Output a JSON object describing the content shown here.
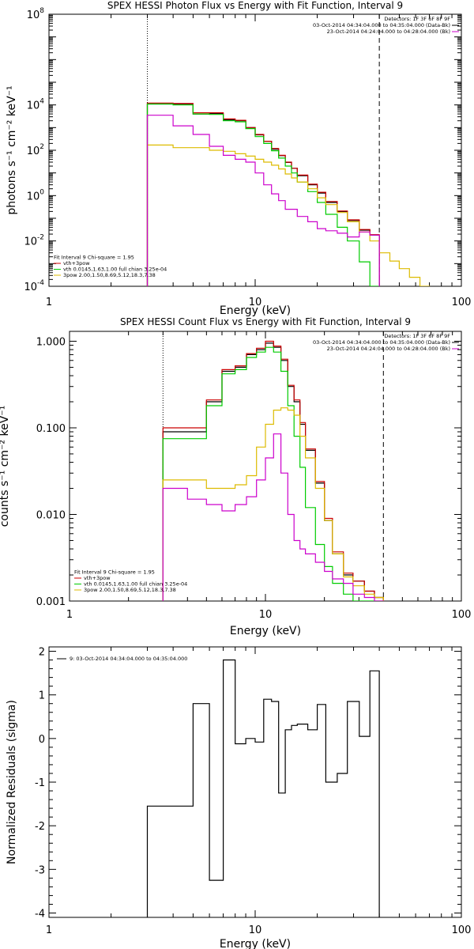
{
  "chart_data": [
    {
      "type": "line",
      "title": "SPEX HESSI Photon Flux vs Energy with Fit Function, Interval 9",
      "xlabel": "Energy (keV)",
      "ylabel": "photons s⁻¹ cm⁻² keV⁻¹",
      "xlim": [
        1,
        100
      ],
      "ylim": [
        0.0001,
        100000000
      ],
      "xscale": "log",
      "yscale": "log",
      "xticks": [
        {
          "v": 1,
          "label": "1"
        },
        {
          "v": 10,
          "label": "10"
        },
        {
          "v": 100,
          "label": "100"
        }
      ],
      "yticks": [
        {
          "v": 0.0001,
          "base": "10",
          "exp": "-4"
        },
        {
          "v": 0.01,
          "base": "10",
          "exp": "-2"
        },
        {
          "v": 1,
          "base": "10",
          "exp": "0"
        },
        {
          "v": 100,
          "base": "10",
          "exp": "2"
        },
        {
          "v": 10000,
          "base": "10",
          "exp": "4"
        },
        {
          "v": 100000000,
          "base": "10",
          "exp": "8"
        }
      ],
      "vlines": [
        {
          "x": 3,
          "style": "dotted"
        },
        {
          "x": 40,
          "style": "dashed"
        }
      ],
      "header_lines": [
        "Detectors: 1F 3F 6F 8F 9F",
        "03-Oct-2014 04:34:04.000 to 04:35:04.000 (Data-Bk)",
        "23-Oct-2014 04:24:04.000 to 04:28:04.000 (Bk)"
      ],
      "header_colors": [
        "",
        "#000000",
        "#cc00cc"
      ],
      "fit_info_lines": [
        "Fit Interval 9   Chi-square = 1.95",
        "vth+3pow",
        "vth 0.0145,1.63,1.00  full chian 3.25e-04",
        "3pow 2.00,1.50,8.69,5.12,18.3,7.38"
      ],
      "fit_info_colors": [
        "#000000",
        "#cc0000",
        "#00cc00",
        "#ddbb00"
      ],
      "series": [
        {
          "role": "data",
          "color": "#000000",
          "edges": [
            3,
            4,
            5,
            6,
            7,
            8,
            9,
            10,
            11,
            12,
            13,
            14,
            15,
            16,
            18,
            20,
            22,
            25,
            28,
            32,
            36,
            40
          ],
          "values": [
            11000,
            11000,
            4000,
            4200,
            2200,
            2000,
            1000,
            480,
            250,
            110,
            58,
            29,
            16,
            7.5,
            3,
            1.3,
            0.5,
            0.2,
            0.08,
            0.03,
            0.018
          ]
        },
        {
          "role": "model-total",
          "color": "#cc0000",
          "edges": [
            3,
            4,
            5,
            6,
            7,
            8,
            9,
            10,
            11,
            12,
            13,
            14,
            15,
            16,
            18,
            20,
            22,
            25,
            28,
            32,
            36,
            40
          ],
          "values": [
            12000,
            11500,
            4500,
            4500,
            2400,
            2100,
            1000,
            500,
            250,
            120,
            60,
            30,
            16,
            8,
            3.2,
            1.4,
            0.55,
            0.21,
            0.085,
            0.032,
            0.019
          ]
        },
        {
          "role": "thermal",
          "color": "#00cc00",
          "edges": [
            3,
            4,
            5,
            6,
            7,
            8,
            9,
            10,
            11,
            12,
            13,
            14,
            15,
            16,
            18,
            20,
            22,
            25,
            28,
            32,
            36,
            40
          ],
          "values": [
            11000,
            10000,
            4000,
            3800,
            2000,
            1800,
            900,
            400,
            200,
            95,
            45,
            20,
            10,
            4,
            1.5,
            0.5,
            0.15,
            0.04,
            0.01,
            0.0012,
            0.0001
          ]
        },
        {
          "role": "nonthermal-3pow",
          "color": "#ddbb00",
          "edges": [
            3,
            4,
            5,
            6,
            7,
            8,
            9,
            10,
            11,
            12,
            13,
            14,
            15,
            16,
            18,
            20,
            22,
            25,
            28,
            32,
            36,
            40,
            45,
            50,
            56,
            63,
            70
          ],
          "values": [
            170,
            130,
            130,
            100,
            90,
            70,
            55,
            40,
            30,
            22,
            15,
            9,
            6,
            4,
            2,
            0.8,
            0.4,
            0.18,
            0.07,
            0.025,
            0.01,
            0.003,
            0.0013,
            0.0006,
            0.00025,
            0.0001
          ]
        },
        {
          "role": "pileup",
          "color": "#cc00cc",
          "edges": [
            3,
            4,
            5,
            6,
            7,
            8,
            9,
            10,
            11,
            12,
            13,
            14,
            16,
            18,
            20,
            22,
            25,
            28,
            32,
            36,
            40
          ],
          "values": [
            3500,
            1200,
            500,
            150,
            60,
            40,
            30,
            10,
            3,
            1.2,
            0.6,
            0.25,
            0.12,
            0.07,
            0.035,
            0.028,
            0.022,
            0.015,
            0.025,
            0.018
          ]
        }
      ]
    },
    {
      "type": "line",
      "title": "SPEX HESSI Count Flux vs Energy with Fit Function, Interval 9",
      "xlabel": "Energy (keV)",
      "ylabel": "counts s⁻¹ cm⁻² keV⁻¹",
      "xlim": [
        1,
        100
      ],
      "ylim": [
        0.001,
        1.3
      ],
      "xscale": "log",
      "yscale": "log",
      "xticks": [
        {
          "v": 1,
          "label": "1"
        },
        {
          "v": 10,
          "label": "10"
        },
        {
          "v": 100,
          "label": "100"
        }
      ],
      "yticks": [
        {
          "v": 0.001,
          "label": "0.001"
        },
        {
          "v": 0.01,
          "label": "0.010"
        },
        {
          "v": 0.1,
          "label": "0.100"
        },
        {
          "v": 1,
          "label": "1.000"
        }
      ],
      "vlines": [
        {
          "x": 3,
          "style": "dotted"
        },
        {
          "x": 40,
          "style": "dashed"
        }
      ],
      "header_lines": [
        "Detectors: 1F 3F 6F 8F 9F",
        "03-Oct-2014 04:34:04.000 to 04:35:04.000 (Data-Bk)",
        "23-Oct-2014 04:24:04.000 to 04:28:04.000 (Bk)"
      ],
      "header_colors": [
        "",
        "#000000",
        "#cc00cc"
      ],
      "fit_info_lines": [
        "Fit Interval 9   Chi-square = 1.95",
        "vth+3pow",
        "vth 0.0145,1.63,1.00  full chian 3.25e-04",
        "3pow 2.00,1.50,8.69,5.12,18.3,7.38"
      ],
      "fit_info_colors": [
        "#000000",
        "#cc0000",
        "#00cc00",
        "#ddbb00"
      ],
      "series": [
        {
          "role": "data",
          "color": "#000000",
          "edges": [
            3,
            4,
            5,
            6,
            7,
            8,
            9,
            10,
            11,
            12,
            13,
            14,
            15,
            16,
            18,
            20,
            22,
            25,
            28,
            32,
            36,
            40
          ],
          "values": [
            0.09,
            0.09,
            0.2,
            0.45,
            0.5,
            0.7,
            0.8,
            0.95,
            0.85,
            0.6,
            0.3,
            0.2,
            0.11,
            0.055,
            0.023,
            0.0085,
            0.0035,
            0.002,
            0.0017,
            0.0013,
            0.0011
          ]
        },
        {
          "role": "model-total",
          "color": "#cc0000",
          "edges": [
            3,
            4,
            5,
            6,
            7,
            8,
            9,
            10,
            11,
            12,
            13,
            14,
            15,
            16,
            18,
            20,
            22,
            25,
            28,
            32,
            36,
            40
          ],
          "values": [
            0.1,
            0.1,
            0.21,
            0.47,
            0.52,
            0.72,
            0.83,
            1,
            0.88,
            0.62,
            0.31,
            0.21,
            0.115,
            0.057,
            0.024,
            0.009,
            0.0037,
            0.0021,
            0.0017,
            0.0013,
            0.0011
          ]
        },
        {
          "role": "thermal",
          "color": "#00cc00",
          "edges": [
            3,
            4,
            5,
            6,
            7,
            8,
            9,
            10,
            11,
            12,
            13,
            14,
            15,
            16,
            18,
            20,
            22,
            25,
            28,
            32,
            36,
            40
          ],
          "values": [
            0.075,
            0.075,
            0.18,
            0.42,
            0.47,
            0.65,
            0.75,
            0.85,
            0.75,
            0.45,
            0.18,
            0.08,
            0.035,
            0.012,
            0.0045,
            0.0025,
            0.0016,
            0.0012,
            0.001,
            0.001,
            0.001
          ]
        },
        {
          "role": "nonthermal-3pow",
          "color": "#ddbb00",
          "edges": [
            3,
            4,
            5,
            6,
            7,
            8,
            9,
            10,
            11,
            12,
            13,
            14,
            15,
            16,
            18,
            20,
            22,
            25,
            28,
            32,
            36,
            40
          ],
          "values": [
            0.025,
            0.025,
            0.02,
            0.02,
            0.022,
            0.028,
            0.06,
            0.11,
            0.16,
            0.17,
            0.16,
            0.14,
            0.08,
            0.045,
            0.02,
            0.0085,
            0.0035,
            0.0019,
            0.0015,
            0.0012,
            0.0011
          ]
        },
        {
          "role": "pileup",
          "color": "#cc00cc",
          "edges": [
            3,
            4,
            5,
            6,
            7,
            8,
            9,
            10,
            11,
            12,
            13,
            14,
            15,
            16,
            18,
            20,
            22,
            25,
            28,
            32,
            36,
            40
          ],
          "values": [
            0.02,
            0.015,
            0.013,
            0.011,
            0.013,
            0.016,
            0.025,
            0.045,
            0.085,
            0.03,
            0.01,
            0.005,
            0.004,
            0.0035,
            0.0028,
            0.0022,
            0.0018,
            0.0016,
            0.0012,
            0.0011,
            0.001
          ]
        }
      ]
    },
    {
      "type": "line",
      "title": "",
      "xlabel": "Energy (keV)",
      "ylabel": "Normalized Residuals (sigma)",
      "xlim": [
        1,
        100
      ],
      "ylim": [
        -4.1,
        2.1
      ],
      "xscale": "log",
      "yscale": "linear",
      "xticks": [
        {
          "v": 1,
          "label": "1"
        },
        {
          "v": 10,
          "label": "10"
        },
        {
          "v": 100,
          "label": "100"
        }
      ],
      "yticks": [
        {
          "v": -4,
          "label": "-4"
        },
        {
          "v": -3,
          "label": "-3"
        },
        {
          "v": -2,
          "label": "-2"
        },
        {
          "v": -1,
          "label": "-1"
        },
        {
          "v": 0,
          "label": "0"
        },
        {
          "v": 1,
          "label": "1"
        },
        {
          "v": 2,
          "label": "2"
        }
      ],
      "legend": "9: 03-Oct-2014 04:34:04.000 to 04:35:04.000",
      "series": [
        {
          "role": "residuals",
          "color": "#000000",
          "edges": [
            3,
            4,
            5,
            6,
            7,
            8,
            9,
            10,
            11,
            12,
            13,
            14,
            15,
            16,
            18,
            20,
            22,
            25,
            28,
            32,
            36,
            40
          ],
          "values": [
            -1.55,
            -1.55,
            0.8,
            -3.25,
            1.8,
            -0.12,
            0,
            -0.08,
            0.9,
            0.85,
            -1.25,
            0.2,
            0.3,
            0.33,
            0.2,
            0.78,
            -1.0,
            -0.8,
            0.85,
            0.05,
            1.55
          ]
        }
      ]
    }
  ]
}
